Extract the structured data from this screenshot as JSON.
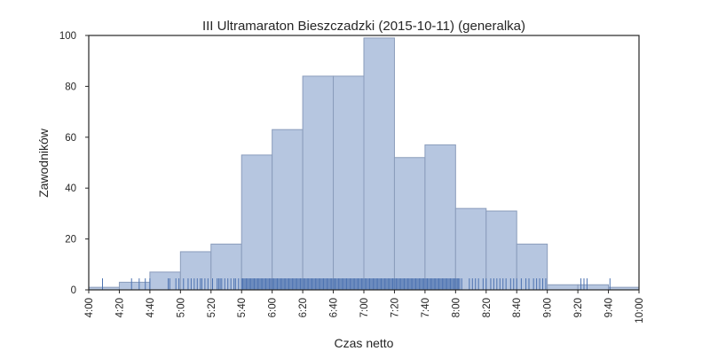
{
  "chart_data": {
    "type": "bar",
    "title": "III Ultramaraton Bieszczadzki (2015-10-11) (generalka)",
    "xlabel": "Czas netto",
    "ylabel": "Zawodników",
    "xlim_minutes": [
      240,
      600
    ],
    "ylim": [
      0,
      100
    ],
    "x_ticks": [
      "4:00",
      "4:20",
      "4:40",
      "5:00",
      "5:20",
      "5:40",
      "6:00",
      "6:20",
      "6:40",
      "7:00",
      "7:20",
      "7:40",
      "8:00",
      "8:20",
      "8:40",
      "9:00",
      "9:20",
      "9:40",
      "10:00"
    ],
    "y_ticks": [
      "0",
      "20",
      "40",
      "60",
      "80",
      "100"
    ],
    "bins": [
      {
        "start": "4:00",
        "end": "4:20",
        "value": 1
      },
      {
        "start": "4:20",
        "end": "4:40",
        "value": 3
      },
      {
        "start": "4:40",
        "end": "5:00",
        "value": 7
      },
      {
        "start": "5:00",
        "end": "5:20",
        "value": 15
      },
      {
        "start": "5:20",
        "end": "5:40",
        "value": 18
      },
      {
        "start": "5:40",
        "end": "6:00",
        "value": 53
      },
      {
        "start": "6:00",
        "end": "6:20",
        "value": 63
      },
      {
        "start": "6:20",
        "end": "6:40",
        "value": 84
      },
      {
        "start": "6:40",
        "end": "7:00",
        "value": 84
      },
      {
        "start": "7:00",
        "end": "7:20",
        "value": 99
      },
      {
        "start": "7:20",
        "end": "7:40",
        "value": 52
      },
      {
        "start": "7:40",
        "end": "8:00",
        "value": 57
      },
      {
        "start": "8:00",
        "end": "8:20",
        "value": 32
      },
      {
        "start": "8:20",
        "end": "8:40",
        "value": 31
      },
      {
        "start": "8:40",
        "end": "9:00",
        "value": 18
      },
      {
        "start": "9:00",
        "end": "9:20",
        "value": 2
      },
      {
        "start": "9:20",
        "end": "9:40",
        "value": 2
      },
      {
        "start": "9:40",
        "end": "10:00",
        "value": 1
      }
    ],
    "rug_approx_note_free": true,
    "rug_sparse": [
      "4:09",
      "4:28",
      "4:33",
      "4:37",
      "4:40",
      "4:52",
      "4:53",
      "4:57",
      "4:59",
      "5:02",
      "5:05",
      "5:07",
      "5:09",
      "5:11",
      "5:13",
      "5:14",
      "5:16",
      "5:18",
      "5:21",
      "5:24",
      "5:25",
      "5:26",
      "5:27",
      "5:29",
      "5:31",
      "5:33",
      "5:35",
      "5:36",
      "5:38",
      "8:04",
      "8:09",
      "8:11",
      "8:13",
      "8:15",
      "8:18",
      "8:20",
      "8:23",
      "8:25",
      "8:27",
      "8:29",
      "8:31",
      "8:33",
      "8:36",
      "8:38",
      "8:40",
      "8:43",
      "8:46",
      "8:48",
      "8:51",
      "8:53",
      "8:55",
      "8:57",
      "8:59",
      "9:22",
      "9:24",
      "9:26",
      "9:41"
    ],
    "rug_dense_range": [
      "5:40",
      "8:03"
    ],
    "grid": false,
    "colors": {
      "bar_fill": "#b6c6e0",
      "bar_edge": "#8a9cbb",
      "rug": "#4c72b0",
      "axes": "#262626"
    }
  }
}
